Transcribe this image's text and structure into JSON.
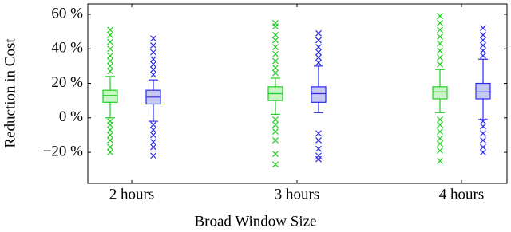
{
  "chart_data": {
    "type": "box",
    "x_label": "Broad Window Size",
    "y_label": "Reduction in Cost",
    "categories": [
      "2 hours",
      "3 hours",
      "4 hours"
    ],
    "ylim": [
      -38,
      66
    ],
    "yticks": [
      {
        "value": -20,
        "label": "−20 %"
      },
      {
        "value": 0,
        "label": "0 %"
      },
      {
        "value": 20,
        "label": "20 %"
      },
      {
        "value": 40,
        "label": "40 %"
      },
      {
        "value": 60,
        "label": "60 %"
      }
    ],
    "series": [
      {
        "color": "#22cc22",
        "fill": "#c8f4c8",
        "boxes": [
          {
            "min": 0,
            "q1": 9,
            "median": 13,
            "q3": 16,
            "max": 24,
            "outliers": [
              27,
              30,
              33,
              36,
              40,
              44,
              48,
              51,
              -2,
              -4,
              -7,
              -10,
              -13,
              -17,
              -20
            ]
          },
          {
            "min": 2,
            "q1": 10,
            "median": 14,
            "q3": 18,
            "max": 23,
            "outliers": [
              26,
              29,
              33,
              37,
              41,
              45,
              48,
              53,
              55,
              -1,
              -4,
              -8,
              -13,
              -21,
              -27
            ]
          },
          {
            "min": 3,
            "q1": 11,
            "median": 15,
            "q3": 18,
            "max": 28,
            "outliers": [
              31,
              35,
              39,
              43,
              47,
              51,
              55,
              59,
              -1,
              -4,
              -8,
              -12,
              -15,
              -19,
              -25
            ]
          }
        ]
      },
      {
        "color": "#2a2aee",
        "fill": "#c8c8f6",
        "boxes": [
          {
            "min": -2,
            "q1": 8,
            "median": 12,
            "q3": 16,
            "max": 22,
            "outliers": [
              25,
              28,
              31,
              34,
              38,
              42,
              46,
              -4,
              -7,
              -10,
              -14,
              -17,
              -22
            ]
          },
          {
            "min": 3,
            "q1": 9,
            "median": 14,
            "q3": 18,
            "max": 30,
            "outliers": [
              32,
              35,
              38,
              41,
              45,
              49,
              -9,
              -13,
              -18,
              -22,
              -24
            ]
          },
          {
            "min": -1,
            "q1": 11,
            "median": 15,
            "q3": 20,
            "max": 34,
            "outliers": [
              36,
              39,
              42,
              45,
              48,
              52,
              -2,
              -5,
              -9,
              -13,
              -17,
              -20
            ]
          }
        ]
      }
    ]
  }
}
